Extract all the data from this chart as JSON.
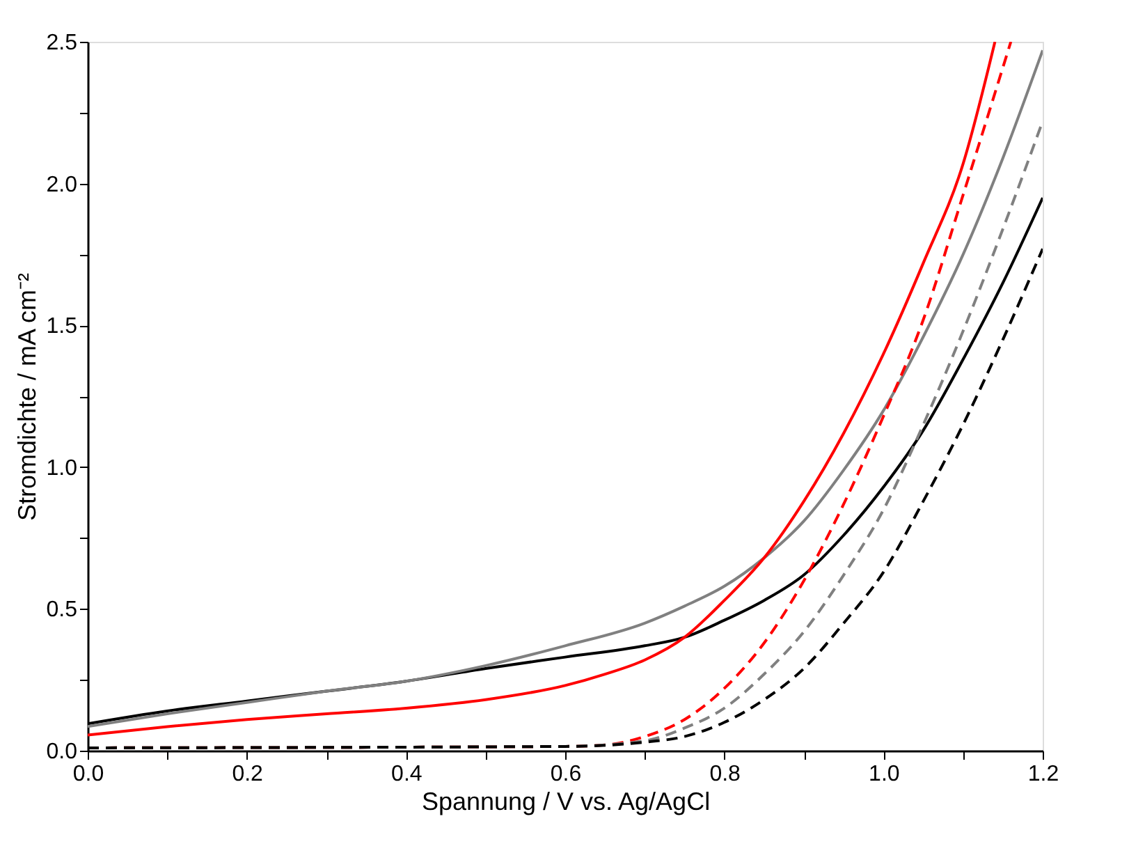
{
  "chart_data": {
    "type": "line",
    "xlabel": "Spannung / V vs. Ag/AgCl",
    "ylabel": "Stromdichte / mA cm⁻²",
    "xlim": [
      0,
      1.2
    ],
    "ylim": [
      0,
      2.5
    ],
    "xticks": [
      {
        "value": 0,
        "label": "0.0"
      },
      {
        "value": 0.1,
        "label": null
      },
      0.2,
      {
        "value": 0.3,
        "label": null
      },
      0.4,
      {
        "value": 0.5,
        "label": null
      },
      0.6,
      {
        "value": 0.7,
        "label": null
      },
      0.8,
      {
        "value": 0.9,
        "label": null
      },
      {
        "value": 1,
        "label": "1.0"
      },
      {
        "value": 1.1,
        "label": null
      },
      1.2
    ],
    "yticks": [
      {
        "value": 0,
        "label": "0.0"
      },
      {
        "value": 0.25,
        "label": null
      },
      0.5,
      {
        "value": 0.75,
        "label": null
      },
      {
        "value": 1,
        "label": "1.0"
      },
      {
        "value": 1.25,
        "label": null
      },
      1.5,
      {
        "value": 1.75,
        "label": null
      },
      {
        "value": 2,
        "label": "2.0"
      },
      {
        "value": 2.25,
        "label": null
      },
      2.5
    ],
    "grid": false,
    "legend": false,
    "marker": "none",
    "series": [
      {
        "color": "#000000",
        "line_style": "solid",
        "x": [
          0,
          0.1,
          0.2,
          0.3,
          0.4,
          0.5,
          0.6,
          0.7,
          0.75,
          0.8,
          0.85,
          0.9,
          0.95,
          1.0,
          1.05,
          1.1,
          1.15,
          1.2
        ],
        "values": [
          0.095,
          0.14,
          0.175,
          0.21,
          0.245,
          0.29,
          0.33,
          0.37,
          0.4,
          0.46,
          0.53,
          0.62,
          0.76,
          0.93,
          1.13,
          1.38,
          1.65,
          1.95
        ]
      },
      {
        "color": "#808080",
        "line_style": "solid",
        "x": [
          0,
          0.1,
          0.2,
          0.3,
          0.4,
          0.5,
          0.6,
          0.7,
          0.75,
          0.8,
          0.85,
          0.9,
          0.95,
          1.0,
          1.05,
          1.1,
          1.15,
          1.2
        ],
        "values": [
          0.085,
          0.13,
          0.17,
          0.21,
          0.245,
          0.3,
          0.37,
          0.45,
          0.51,
          0.58,
          0.68,
          0.81,
          0.99,
          1.2,
          1.46,
          1.75,
          2.09,
          2.47
        ]
      },
      {
        "color": "#ff0000",
        "line_style": "solid",
        "x": [
          0,
          0.1,
          0.2,
          0.3,
          0.4,
          0.5,
          0.6,
          0.65,
          0.7,
          0.75,
          0.8,
          0.85,
          0.9,
          0.95,
          1.0,
          1.05,
          1.1,
          1.14
        ],
        "values": [
          0.055,
          0.085,
          0.11,
          0.13,
          0.15,
          0.18,
          0.23,
          0.27,
          0.32,
          0.4,
          0.53,
          0.68,
          0.88,
          1.12,
          1.4,
          1.72,
          2.07,
          2.5
        ]
      },
      {
        "color": "#ff0000",
        "line_style": "dashed",
        "x": [
          0,
          0.6,
          0.65,
          0.7,
          0.75,
          0.8,
          0.85,
          0.9,
          0.95,
          1.0,
          1.05,
          1.1,
          1.16
        ],
        "values": [
          0.01,
          0.015,
          0.02,
          0.05,
          0.11,
          0.22,
          0.38,
          0.6,
          0.87,
          1.18,
          1.52,
          1.96,
          2.5
        ]
      },
      {
        "color": "#808080",
        "line_style": "dashed",
        "x": [
          0,
          0.6,
          0.7,
          0.75,
          0.8,
          0.85,
          0.9,
          0.95,
          1.0,
          1.05,
          1.1,
          1.15,
          1.2
        ],
        "values": [
          0.01,
          0.015,
          0.035,
          0.08,
          0.15,
          0.27,
          0.42,
          0.62,
          0.85,
          1.15,
          1.48,
          1.84,
          2.22
        ]
      },
      {
        "color": "#000000",
        "line_style": "dashed",
        "x": [
          0,
          0.6,
          0.7,
          0.75,
          0.8,
          0.85,
          0.9,
          0.95,
          1.0,
          1.05,
          1.1,
          1.15,
          1.2
        ],
        "values": [
          0.01,
          0.015,
          0.03,
          0.05,
          0.1,
          0.18,
          0.29,
          0.45,
          0.63,
          0.88,
          1.15,
          1.45,
          1.77
        ]
      }
    ]
  }
}
